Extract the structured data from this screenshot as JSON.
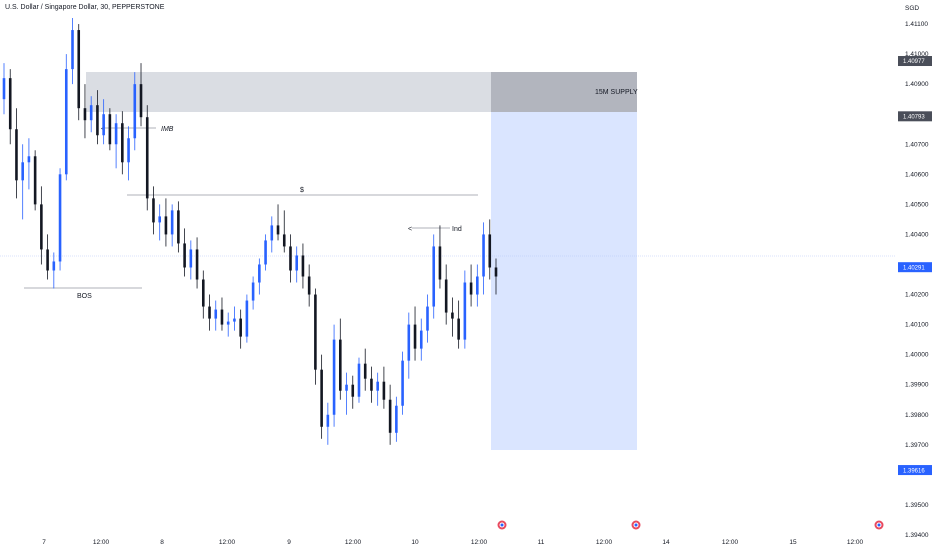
{
  "title": "U.S. Dollar / Singapore Dollar, 30, PEPPERSTONE",
  "currency": "SGD",
  "colors": {
    "up_candle": "#2962ff",
    "down_candle": "#131722",
    "supply_zone": "#d1d4dc",
    "target_zone": "#d6e2ff",
    "price_tag_dark": "#4a4e59",
    "price_tag_current": "#2962ff",
    "annotation_line": "#9598a1"
  },
  "chart_data": {
    "type": "candlestick",
    "y_axis_ticks": [
      "1.41100",
      "1.41000",
      "1.40900",
      "1.40700",
      "1.40600",
      "1.40500",
      "1.40400",
      "1.40200",
      "1.40100",
      "1.40000",
      "1.39900",
      "1.39800",
      "1.39700",
      "1.39500",
      "1.39400"
    ],
    "ylim": [
      1.3935,
      1.4118
    ],
    "x_axis_ticks": [
      "7",
      "12:00",
      "8",
      "12:00",
      "9",
      "12:00",
      "10",
      "12:00",
      "11",
      "12:00",
      "14",
      "12:00",
      "15",
      "12:00"
    ],
    "price_labels": [
      {
        "text": "1.40977",
        "style": "dark",
        "value": 1.40977
      },
      {
        "text": "1.40793",
        "style": "dark",
        "value": 1.40793
      },
      {
        "text": "1.40291",
        "style": "current",
        "value": 1.40291
      },
      {
        "text": "1.39616",
        "style": "current",
        "value": 1.39616
      }
    ],
    "candles": [
      [
        1.4085,
        1.4097,
        1.408,
        1.4092
      ],
      [
        1.4092,
        1.4095,
        1.407,
        1.4075
      ],
      [
        1.4075,
        1.4082,
        1.4052,
        1.4058
      ],
      [
        1.4058,
        1.407,
        1.4045,
        1.4064
      ],
      [
        1.4064,
        1.4072,
        1.4055,
        1.4066
      ],
      [
        1.4066,
        1.4068,
        1.4048,
        1.405
      ],
      [
        1.405,
        1.4056,
        1.403,
        1.4035
      ],
      [
        1.4035,
        1.404,
        1.4025,
        1.4028
      ],
      [
        1.4028,
        1.4034,
        1.4022,
        1.4031
      ],
      [
        1.4031,
        1.4062,
        1.4028,
        1.406
      ],
      [
        1.406,
        1.41,
        1.4058,
        1.4095
      ],
      [
        1.4095,
        1.4112,
        1.409,
        1.4108
      ],
      [
        1.4108,
        1.411,
        1.4078,
        1.4082
      ],
      [
        1.4082,
        1.409,
        1.4072,
        1.4078
      ],
      [
        1.4078,
        1.4086,
        1.4074,
        1.4083
      ],
      [
        1.4083,
        1.4088,
        1.407,
        1.4073
      ],
      [
        1.4073,
        1.4085,
        1.407,
        1.408
      ],
      [
        1.408,
        1.4082,
        1.4068,
        1.407
      ],
      [
        1.407,
        1.408,
        1.4062,
        1.4077
      ],
      [
        1.4077,
        1.4081,
        1.406,
        1.4064
      ],
      [
        1.4064,
        1.4076,
        1.4058,
        1.4072
      ],
      [
        1.4072,
        1.4094,
        1.4068,
        1.409
      ],
      [
        1.409,
        1.4097,
        1.4076,
        1.4079
      ],
      [
        1.4079,
        1.4083,
        1.4048,
        1.4052
      ],
      [
        1.4052,
        1.4056,
        1.404,
        1.4044
      ],
      [
        1.4044,
        1.405,
        1.4038,
        1.4046
      ],
      [
        1.4046,
        1.4052,
        1.4036,
        1.404
      ],
      [
        1.404,
        1.405,
        1.4036,
        1.4048
      ],
      [
        1.4048,
        1.4051,
        1.4034,
        1.4037
      ],
      [
        1.4037,
        1.4042,
        1.4026,
        1.4029
      ],
      [
        1.4029,
        1.4038,
        1.4025,
        1.4035
      ],
      [
        1.4035,
        1.4039,
        1.4022,
        1.4025
      ],
      [
        1.4025,
        1.4028,
        1.4012,
        1.4016
      ],
      [
        1.4016,
        1.402,
        1.4008,
        1.4012
      ],
      [
        1.4012,
        1.4018,
        1.4008,
        1.4015
      ],
      [
        1.4015,
        1.4019,
        1.4008,
        1.401
      ],
      [
        1.401,
        1.4014,
        1.4006,
        1.4011
      ],
      [
        1.4011,
        1.4016,
        1.4008,
        1.4012
      ],
      [
        1.4012,
        1.4015,
        1.4002,
        1.4006
      ],
      [
        1.4006,
        1.402,
        1.4004,
        1.4018
      ],
      [
        1.4018,
        1.4026,
        1.4015,
        1.4024
      ],
      [
        1.4024,
        1.4032,
        1.402,
        1.403
      ],
      [
        1.403,
        1.404,
        1.4028,
        1.4038
      ],
      [
        1.4038,
        1.4046,
        1.4034,
        1.4043
      ],
      [
        1.4043,
        1.405,
        1.4038,
        1.404
      ],
      [
        1.404,
        1.4048,
        1.4034,
        1.4036
      ],
      [
        1.4036,
        1.404,
        1.4024,
        1.4028
      ],
      [
        1.4028,
        1.4036,
        1.4024,
        1.4033
      ],
      [
        1.4033,
        1.4037,
        1.4022,
        1.4026
      ],
      [
        1.4026,
        1.403,
        1.4016,
        1.402
      ],
      [
        1.402,
        1.4022,
        1.399,
        1.3995
      ],
      [
        1.3995,
        1.4,
        1.3972,
        1.3976
      ],
      [
        1.3976,
        1.3984,
        1.397,
        1.398
      ],
      [
        1.398,
        1.401,
        1.3976,
        1.4005
      ],
      [
        1.4005,
        1.4012,
        1.3985,
        1.3988
      ],
      [
        1.3988,
        1.3994,
        1.398,
        1.399
      ],
      [
        1.399,
        1.3993,
        1.3982,
        1.3986
      ],
      [
        1.3986,
        1.3999,
        1.3984,
        1.3997
      ],
      [
        1.3997,
        1.4002,
        1.3988,
        1.3992
      ],
      [
        1.3992,
        1.3996,
        1.3984,
        1.3988
      ],
      [
        1.3988,
        1.3994,
        1.3983,
        1.3991
      ],
      [
        1.3991,
        1.3996,
        1.3982,
        1.3985
      ],
      [
        1.3985,
        1.399,
        1.397,
        1.3974
      ],
      [
        1.3974,
        1.3986,
        1.3971,
        1.3983
      ],
      [
        1.3983,
        1.4001,
        1.398,
        1.3998
      ],
      [
        1.3998,
        1.4014,
        1.3992,
        1.401
      ],
      [
        1.401,
        1.4016,
        1.3998,
        1.4002
      ],
      [
        1.4002,
        1.4012,
        1.3998,
        1.4008
      ],
      [
        1.4008,
        1.402,
        1.4004,
        1.4016
      ],
      [
        1.4016,
        1.404,
        1.4012,
        1.4036
      ],
      [
        1.4036,
        1.4043,
        1.4022,
        1.4025
      ],
      [
        1.4025,
        1.403,
        1.401,
        1.4014
      ],
      [
        1.4014,
        1.4019,
        1.4006,
        1.4012
      ],
      [
        1.4012,
        1.4018,
        1.4002,
        1.4005
      ],
      [
        1.4005,
        1.4028,
        1.4002,
        1.4024
      ],
      [
        1.4024,
        1.403,
        1.4016,
        1.402
      ],
      [
        1.402,
        1.403,
        1.4016,
        1.4026
      ],
      [
        1.4026,
        1.4044,
        1.402,
        1.404
      ],
      [
        1.404,
        1.4045,
        1.4025,
        1.4029
      ],
      [
        1.4029,
        1.4032,
        1.402,
        1.4026
      ]
    ],
    "annotations": [
      {
        "type": "label",
        "text": "IMB",
        "style": "italic"
      },
      {
        "type": "label",
        "text": "$"
      },
      {
        "type": "label",
        "text": "Ind"
      },
      {
        "type": "label",
        "text": "BOS"
      },
      {
        "type": "zone",
        "text": "15M SUPPLY",
        "from": 1.40793,
        "to": 1.40977
      },
      {
        "type": "zone",
        "text": "",
        "from": 1.39616,
        "to": 1.40793
      }
    ]
  }
}
